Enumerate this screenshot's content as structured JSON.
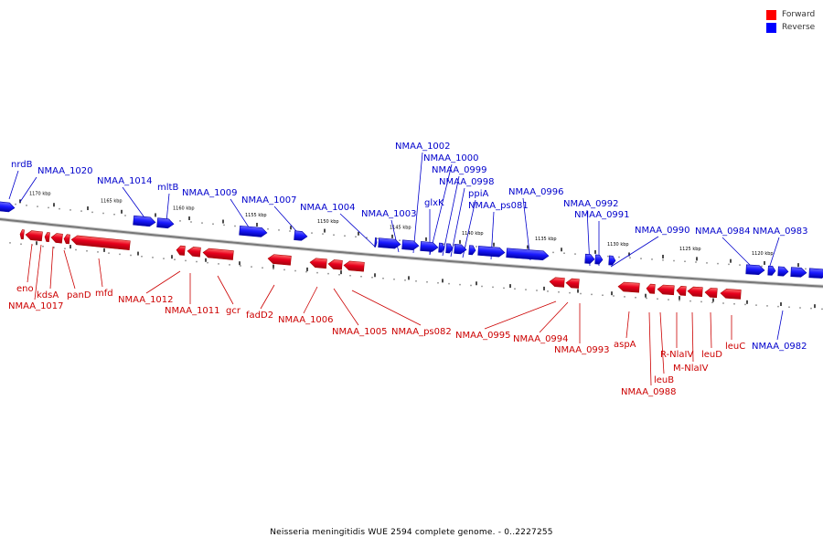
{
  "legend": {
    "items": [
      {
        "label": "Forward",
        "color": "#ff0000"
      },
      {
        "label": "Reverse",
        "color": "#0000ff"
      }
    ]
  },
  "caption": "Neisseria meningitidis WUE 2594 complete genome. - 0..2227255",
  "colors": {
    "forward": "#e8001c",
    "reverse": "#1a1aff",
    "forward_label": "#cc0000",
    "reverse_label": "#0000cc",
    "backbone": "#888888"
  },
  "scale_ticks": [
    "1170 kbp",
    "1165 kbp",
    "1160 kbp",
    "1155 kbp",
    "1150 kbp",
    "1145 kbp",
    "1140 kbp",
    "1135 kbp",
    "1130 kbp",
    "1125 kbp",
    "1120 kbp"
  ],
  "reverse_genes": [
    {
      "name": "nrdB"
    },
    {
      "name": "NMAA_1020"
    },
    {
      "name": "NMAA_1014"
    },
    {
      "name": "mltB"
    },
    {
      "name": "NMAA_1009"
    },
    {
      "name": "NMAA_1007"
    },
    {
      "name": "NMAA_1004"
    },
    {
      "name": "NMAA_1003"
    },
    {
      "name": "NMAA_1002"
    },
    {
      "name": "NMAA_1000"
    },
    {
      "name": "NMAA_0999"
    },
    {
      "name": "glxK"
    },
    {
      "name": "NMAA_0998"
    },
    {
      "name": "ppiA"
    },
    {
      "name": "NMAA_ps081"
    },
    {
      "name": "NMAA_0996"
    },
    {
      "name": "NMAA_0992"
    },
    {
      "name": "NMAA_0991"
    },
    {
      "name": "NMAA_0990"
    },
    {
      "name": "NMAA_0984"
    },
    {
      "name": "NMAA_0983"
    },
    {
      "name": "NMAA_0982"
    }
  ],
  "forward_genes": [
    {
      "name": "eno"
    },
    {
      "name": "NMAA_1017"
    },
    {
      "name": "kdsA"
    },
    {
      "name": "panD"
    },
    {
      "name": "mfd"
    },
    {
      "name": "NMAA_1012"
    },
    {
      "name": "NMAA_1011"
    },
    {
      "name": "gcr"
    },
    {
      "name": "fadD2"
    },
    {
      "name": "NMAA_1006"
    },
    {
      "name": "NMAA_1005"
    },
    {
      "name": "NMAA_ps082"
    },
    {
      "name": "NMAA_0995"
    },
    {
      "name": "NMAA_0994"
    },
    {
      "name": "NMAA_0993"
    },
    {
      "name": "aspA"
    },
    {
      "name": "R-NlaIV"
    },
    {
      "name": "M-NlaIV"
    },
    {
      "name": "leuD"
    },
    {
      "name": "leuC"
    },
    {
      "name": "leuB"
    },
    {
      "name": "NMAA_0988"
    }
  ]
}
